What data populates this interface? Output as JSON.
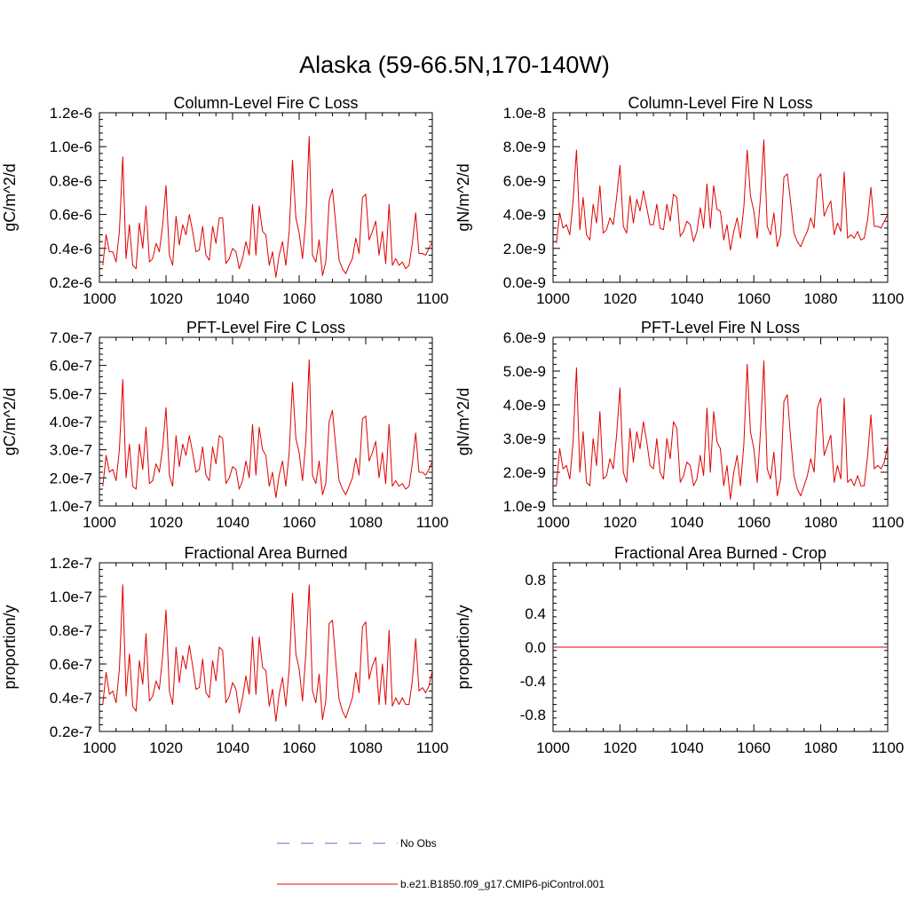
{
  "figure": {
    "title": "Alaska (59-66.5N,170-140W)",
    "legend": [
      {
        "label": "No Obs",
        "color": "#6a6ad8",
        "dash": "dashed"
      },
      {
        "label": "b.e21.B1850.f09_g17.CMIP6-piControl.001",
        "color": "#e01010",
        "dash": "solid"
      }
    ],
    "series_color": "#e00000"
  },
  "chart_data": [
    {
      "type": "line",
      "title": "Column-Level Fire C Loss",
      "ylabel": "gC/m^2/d",
      "xlabel": "",
      "xlim": [
        1000,
        1100
      ],
      "xticks": [
        "1000",
        "1020",
        "1040",
        "1060",
        "1080",
        "1100"
      ],
      "ylim": [
        2e-07,
        1.2e-06
      ],
      "yticks": [
        "0.2e-6",
        "0.4e-6",
        "0.6e-6",
        "0.8e-6",
        "1.0e-6",
        "1.2e-6"
      ],
      "x_start": 1001,
      "series": [
        {
          "name": "b.e21.B1850.f09_g17.CMIP6-piControl.001",
          "values": [
            3e-07,
            4.8e-07,
            3.8e-07,
            3.8e-07,
            3.2e-07,
            5e-07,
            9.4e-07,
            3.4e-07,
            5.4e-07,
            3e-07,
            2.8e-07,
            5.5e-07,
            4e-07,
            6.5e-07,
            3.2e-07,
            3.4e-07,
            4.3e-07,
            3.8e-07,
            5.4e-07,
            7.7e-07,
            3.6e-07,
            3e-07,
            5.9e-07,
            4.2e-07,
            5.4e-07,
            4.8e-07,
            6e-07,
            5e-07,
            3.8e-07,
            3.9e-07,
            5.3e-07,
            3.6e-07,
            3.3e-07,
            5.3e-07,
            4.3e-07,
            5.8e-07,
            5.8e-07,
            3.1e-07,
            3.4e-07,
            4e-07,
            3.8e-07,
            2.8e-07,
            3.4e-07,
            4.4e-07,
            3.6e-07,
            6.6e-07,
            3.6e-07,
            6.5e-07,
            5e-07,
            4.8e-07,
            3e-07,
            3.8e-07,
            2.3e-07,
            3.6e-07,
            4.4e-07,
            3e-07,
            5e-07,
            9.2e-07,
            5.8e-07,
            4.9e-07,
            3.4e-07,
            5.7e-07,
            1.06e-06,
            3.6e-07,
            3.2e-07,
            4.5e-07,
            2.4e-07,
            3.2e-07,
            6.8e-07,
            7.5e-07,
            5.4e-07,
            3.3e-07,
            2.8e-07,
            2.5e-07,
            3e-07,
            3.4e-07,
            4.6e-07,
            3.7e-07,
            7e-07,
            7.2e-07,
            4.5e-07,
            5e-07,
            5.6e-07,
            3.6e-07,
            5e-07,
            3.1e-07,
            6.6e-07,
            3e-07,
            3.4e-07,
            3e-07,
            3.2e-07,
            2.8e-07,
            3e-07,
            4.3e-07,
            6.1e-07,
            3.7e-07,
            3.7e-07,
            3.6e-07,
            4e-07,
            4.4e-07
          ]
        }
      ]
    },
    {
      "type": "line",
      "title": "Column-Level Fire N Loss",
      "ylabel": "gN/m^2/d",
      "xlabel": "",
      "xlim": [
        1000,
        1100
      ],
      "xticks": [
        "1000",
        "1020",
        "1040",
        "1060",
        "1080",
        "1100"
      ],
      "ylim": [
        0.0,
        1e-08
      ],
      "yticks": [
        "0.0e-9",
        "2.0e-9",
        "4.0e-9",
        "6.0e-9",
        "8.0e-9",
        "1.0e-8"
      ],
      "x_start": 1001,
      "series": [
        {
          "name": "b.e21.B1850.f09_g17.CMIP6-piControl.001",
          "values": [
            2.3e-09,
            4.1e-09,
            3.2e-09,
            3.4e-09,
            2.8e-09,
            4.8e-09,
            7.8e-09,
            3.1e-09,
            5e-09,
            2.8e-09,
            2.5e-09,
            4.6e-09,
            3.5e-09,
            5.7e-09,
            2.9e-09,
            3.1e-09,
            3.8e-09,
            3.4e-09,
            5e-09,
            6.9e-09,
            3.3e-09,
            2.9e-09,
            5.1e-09,
            3.5e-09,
            4.9e-09,
            4.2e-09,
            5.4e-09,
            4.4e-09,
            3.4e-09,
            3.4e-09,
            4.6e-09,
            3.2e-09,
            3.1e-09,
            4.6e-09,
            3.6e-09,
            5.2e-09,
            5e-09,
            2.7e-09,
            3e-09,
            3.6e-09,
            3.4e-09,
            2.4e-09,
            3e-09,
            4.4e-09,
            3.2e-09,
            5.8e-09,
            3.2e-09,
            5.7e-09,
            4.3e-09,
            4.2e-09,
            2.5e-09,
            3.4e-09,
            1.9e-09,
            3e-09,
            3.8e-09,
            2.6e-09,
            4.4e-09,
            7.8e-09,
            5.1e-09,
            4.2e-09,
            2.6e-09,
            5e-09,
            8.4e-09,
            3.3e-09,
            2.8e-09,
            4.1e-09,
            2.1e-09,
            2.8e-09,
            6.2e-09,
            6.4e-09,
            4.7e-09,
            2.9e-09,
            2.4e-09,
            2.1e-09,
            2.6e-09,
            3e-09,
            3.8e-09,
            3.2e-09,
            6.1e-09,
            6.4e-09,
            3.9e-09,
            4.4e-09,
            4.8e-09,
            2.8e-09,
            3.5e-09,
            3e-09,
            6.5e-09,
            2.6e-09,
            2.8e-09,
            2.6e-09,
            3e-09,
            2.5e-09,
            2.6e-09,
            3.7e-09,
            5.6e-09,
            3.3e-09,
            3.3e-09,
            3.2e-09,
            3.6e-09,
            4e-09
          ]
        }
      ]
    },
    {
      "type": "line",
      "title": "PFT-Level Fire C Loss",
      "ylabel": "gC/m^2/d",
      "xlabel": "",
      "xlim": [
        1000,
        1100
      ],
      "xticks": [
        "1000",
        "1020",
        "1040",
        "1060",
        "1080",
        "1100"
      ],
      "ylim": [
        1e-07,
        7e-07
      ],
      "yticks": [
        "1.0e-7",
        "2.0e-7",
        "3.0e-7",
        "4.0e-7",
        "5.0e-7",
        "6.0e-7",
        "7.0e-7"
      ],
      "x_start": 1001,
      "series": [
        {
          "name": "b.e21.B1850.f09_g17.CMIP6-piControl.001",
          "values": [
            1.7e-07,
            2.8e-07,
            2.2e-07,
            2.3e-07,
            1.9e-07,
            3e-07,
            5.5e-07,
            2e-07,
            3.2e-07,
            1.7e-07,
            1.6e-07,
            3.2e-07,
            2.3e-07,
            3.8e-07,
            1.8e-07,
            1.9e-07,
            2.5e-07,
            2.2e-07,
            3.1e-07,
            4.5e-07,
            2.1e-07,
            1.7e-07,
            3.5e-07,
            2.4e-07,
            3.2e-07,
            2.8e-07,
            3.5e-07,
            2.9e-07,
            2.2e-07,
            2.3e-07,
            3.1e-07,
            2.1e-07,
            1.9e-07,
            3.1e-07,
            2.5e-07,
            3.5e-07,
            3.4e-07,
            1.8e-07,
            2e-07,
            2.4e-07,
            2.3e-07,
            1.6e-07,
            1.9e-07,
            2.6e-07,
            2e-07,
            3.9e-07,
            2.1e-07,
            3.8e-07,
            3e-07,
            2.8e-07,
            1.7e-07,
            2.2e-07,
            1.3e-07,
            2.1e-07,
            2.6e-07,
            1.7e-07,
            2.9e-07,
            5.4e-07,
            3.4e-07,
            2.9e-07,
            1.9e-07,
            3.3e-07,
            6.2e-07,
            2.1e-07,
            1.8e-07,
            2.6e-07,
            1.4e-07,
            1.8e-07,
            4e-07,
            4.4e-07,
            3.1e-07,
            1.9e-07,
            1.6e-07,
            1.4e-07,
            1.7e-07,
            2e-07,
            2.7e-07,
            2.1e-07,
            4.1e-07,
            4.2e-07,
            2.6e-07,
            2.9e-07,
            3.3e-07,
            2e-07,
            2.9e-07,
            1.8e-07,
            3.9e-07,
            1.7e-07,
            1.9e-07,
            1.7e-07,
            1.8e-07,
            1.6e-07,
            1.7e-07,
            2.5e-07,
            3.6e-07,
            2.2e-07,
            2.2e-07,
            2.1e-07,
            2.3e-07,
            2.6e-07
          ]
        }
      ]
    },
    {
      "type": "line",
      "title": "PFT-Level Fire N Loss",
      "ylabel": "gN/m^2/d",
      "xlabel": "",
      "xlim": [
        1000,
        1100
      ],
      "xticks": [
        "1000",
        "1020",
        "1040",
        "1060",
        "1080",
        "1100"
      ],
      "ylim": [
        1e-09,
        6e-09
      ],
      "yticks": [
        "1.0e-9",
        "2.0e-9",
        "3.0e-9",
        "4.0e-9",
        "5.0e-9",
        "6.0e-9"
      ],
      "x_start": 1001,
      "series": [
        {
          "name": "b.e21.B1850.f09_g17.CMIP6-piControl.001",
          "values": [
            1.6e-09,
            2.7e-09,
            2.1e-09,
            2.2e-09,
            1.8e-09,
            2.9e-09,
            5.1e-09,
            2e-09,
            3.2e-09,
            1.7e-09,
            1.6e-09,
            3e-09,
            2.2e-09,
            3.8e-09,
            1.8e-09,
            1.9e-09,
            2.4e-09,
            2.1e-09,
            3.1e-09,
            4.5e-09,
            2e-09,
            1.7e-09,
            3.3e-09,
            2.3e-09,
            3.2e-09,
            2.7e-09,
            3.5e-09,
            2.9e-09,
            2.2e-09,
            2.1e-09,
            3e-09,
            2e-09,
            1.8e-09,
            3e-09,
            2.4e-09,
            3.5e-09,
            3.3e-09,
            1.7e-09,
            1.9e-09,
            2.3e-09,
            2.2e-09,
            1.6e-09,
            1.8e-09,
            2.5e-09,
            1.9e-09,
            3.9e-09,
            2e-09,
            3.8e-09,
            2.9e-09,
            2.7e-09,
            1.6e-09,
            2.2e-09,
            1.2e-09,
            2e-09,
            2.5e-09,
            1.6e-09,
            2.8e-09,
            5.2e-09,
            3.2e-09,
            2.7e-09,
            1.7e-09,
            3.2e-09,
            5.3e-09,
            2.1e-09,
            1.8e-09,
            2.6e-09,
            1.3e-09,
            1.8e-09,
            4.1e-09,
            4.3e-09,
            3e-09,
            1.9e-09,
            1.5e-09,
            1.3e-09,
            1.6e-09,
            1.9e-09,
            2.4e-09,
            2e-09,
            3.9e-09,
            4.2e-09,
            2.5e-09,
            2.8e-09,
            3.1e-09,
            1.7e-09,
            2.2e-09,
            1.8e-09,
            4.2e-09,
            1.7e-09,
            1.8e-09,
            1.6e-09,
            1.9e-09,
            1.6e-09,
            1.6e-09,
            2.5e-09,
            3.7e-09,
            2.1e-09,
            2.2e-09,
            2.1e-09,
            2.3e-09,
            2.8e-09
          ]
        }
      ]
    },
    {
      "type": "line",
      "title": "Fractional Area Burned",
      "ylabel": "proportion/y",
      "xlabel": "",
      "xlim": [
        1000,
        1100
      ],
      "xticks": [
        "1000",
        "1020",
        "1040",
        "1060",
        "1080",
        "1100"
      ],
      "ylim": [
        2e-08,
        1.2e-07
      ],
      "yticks": [
        "0.2e-7",
        "0.4e-7",
        "0.6e-7",
        "0.8e-7",
        "1.0e-7",
        "1.2e-7"
      ],
      "x_start": 1001,
      "series": [
        {
          "name": "b.e21.B1850.f09_g17.CMIP6-piControl.001",
          "values": [
            3.6e-08,
            5.5e-08,
            4.2e-08,
            4.4e-08,
            3.7e-08,
            5.7e-08,
            1.07e-07,
            4.1e-08,
            6.6e-08,
            3.5e-08,
            3.2e-08,
            6.2e-08,
            4.8e-08,
            7.8e-08,
            3.8e-08,
            4.1e-08,
            5e-08,
            4.5e-08,
            6.5e-08,
            9.2e-08,
            4.4e-08,
            3.6e-08,
            7e-08,
            4.9e-08,
            6.5e-08,
            5.7e-08,
            7.1e-08,
            5.9e-08,
            4.5e-08,
            4.6e-08,
            6.3e-08,
            4.3e-08,
            4e-08,
            6.2e-08,
            5e-08,
            7e-08,
            6.8e-08,
            3.7e-08,
            4.1e-08,
            4.9e-08,
            4.5e-08,
            3.1e-08,
            4e-08,
            5.3e-08,
            4.2e-08,
            7.6e-08,
            4.2e-08,
            7.6e-08,
            5.8e-08,
            5.6e-08,
            3.5e-08,
            4.5e-08,
            2.6e-08,
            4.2e-08,
            5.2e-08,
            3.5e-08,
            5.7e-08,
            1.02e-07,
            6.6e-08,
            5.7e-08,
            3.8e-08,
            6.6e-08,
            1.07e-07,
            4.4e-08,
            3.7e-08,
            5.4e-08,
            2.7e-08,
            3.8e-08,
            8.4e-08,
            8.6e-08,
            6.1e-08,
            3.9e-08,
            3.2e-08,
            2.8e-08,
            3.4e-08,
            4e-08,
            5.5e-08,
            4.3e-08,
            8.2e-08,
            8.5e-08,
            5.1e-08,
            5.9e-08,
            6.4e-08,
            3.6e-08,
            6e-08,
            3.6e-08,
            8e-08,
            3.5e-08,
            4e-08,
            3.6e-08,
            4e-08,
            3.6e-08,
            3.6e-08,
            5e-08,
            7.5e-08,
            4.4e-08,
            4.6e-08,
            4.3e-08,
            4.7e-08,
            5.6e-08
          ]
        }
      ]
    },
    {
      "type": "line",
      "title": "Fractional Area Burned - Crop",
      "ylabel": "proportion/y",
      "xlabel": "",
      "xlim": [
        1000,
        1100
      ],
      "xticks": [
        "1000",
        "1020",
        "1040",
        "1060",
        "1080",
        "1100"
      ],
      "ylim": [
        -1.0,
        1.0
      ],
      "yticks": [
        "-0.8",
        "-0.4",
        "0.0",
        "0.4",
        "0.8"
      ],
      "ytick_values": [
        -0.8,
        -0.4,
        0.0,
        0.4,
        0.8
      ],
      "x_start": 1001,
      "constant": 0.0,
      "series": [
        {
          "name": "b.e21.B1850.f09_g17.CMIP6-piControl.001",
          "values": [
            0.0,
            0.0
          ]
        }
      ]
    }
  ]
}
